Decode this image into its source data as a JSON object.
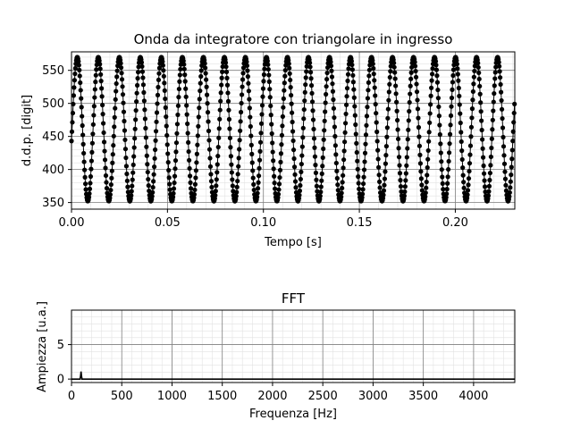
{
  "chart_data": [
    {
      "type": "scatter",
      "title": "Onda  da integratore con triangolare in ingresso",
      "xlabel": "Tempo [s]",
      "ylabel": "d.d.p. [digit]",
      "xlim": [
        0.0,
        0.231
      ],
      "ylim": [
        340,
        578
      ],
      "xticks": [
        "0.00",
        "0.05",
        "0.10",
        "0.15",
        "0.20"
      ],
      "xtick_values": [
        0.0,
        0.05,
        0.1,
        0.15,
        0.2
      ],
      "yticks": [
        "350",
        "400",
        "450",
        "500",
        "550"
      ],
      "ytick_values": [
        350,
        400,
        450,
        500,
        550
      ],
      "grid": true,
      "series": [
        {
          "marker": "filled-circle",
          "color": "#000000",
          "waveform": "sine-like",
          "min": 352,
          "max": 570,
          "period_s": 0.01095,
          "phase_start_s": 0.0085,
          "sample_interval_s": 0.000227,
          "x_start": 0.0,
          "x_end": 0.231
        }
      ]
    },
    {
      "type": "line",
      "title": "FFT",
      "xlabel": "Frequenza [Hz]",
      "ylabel": "Ampiezza [u.a.]",
      "xlim": [
        0,
        4410
      ],
      "ylim": [
        -0.5,
        10
      ],
      "xticks": [
        "0",
        "500",
        "1000",
        "1500",
        "2000",
        "2500",
        "3000",
        "3500",
        "4000"
      ],
      "xtick_values": [
        0,
        500,
        1000,
        1500,
        2000,
        2500,
        3000,
        3500,
        4000
      ],
      "yticks": [
        "0",
        "5"
      ],
      "ytick_values": [
        0,
        5
      ],
      "grid": true,
      "minor_grid": true,
      "series": [
        {
          "color": "#000000",
          "points": [
            [
              0,
              0
            ],
            [
              85,
              0
            ],
            [
              90,
              0.4
            ],
            [
              95,
              1.1
            ],
            [
              100,
              0.4
            ],
            [
              105,
              0
            ],
            [
              4410,
              0
            ]
          ]
        }
      ]
    }
  ]
}
